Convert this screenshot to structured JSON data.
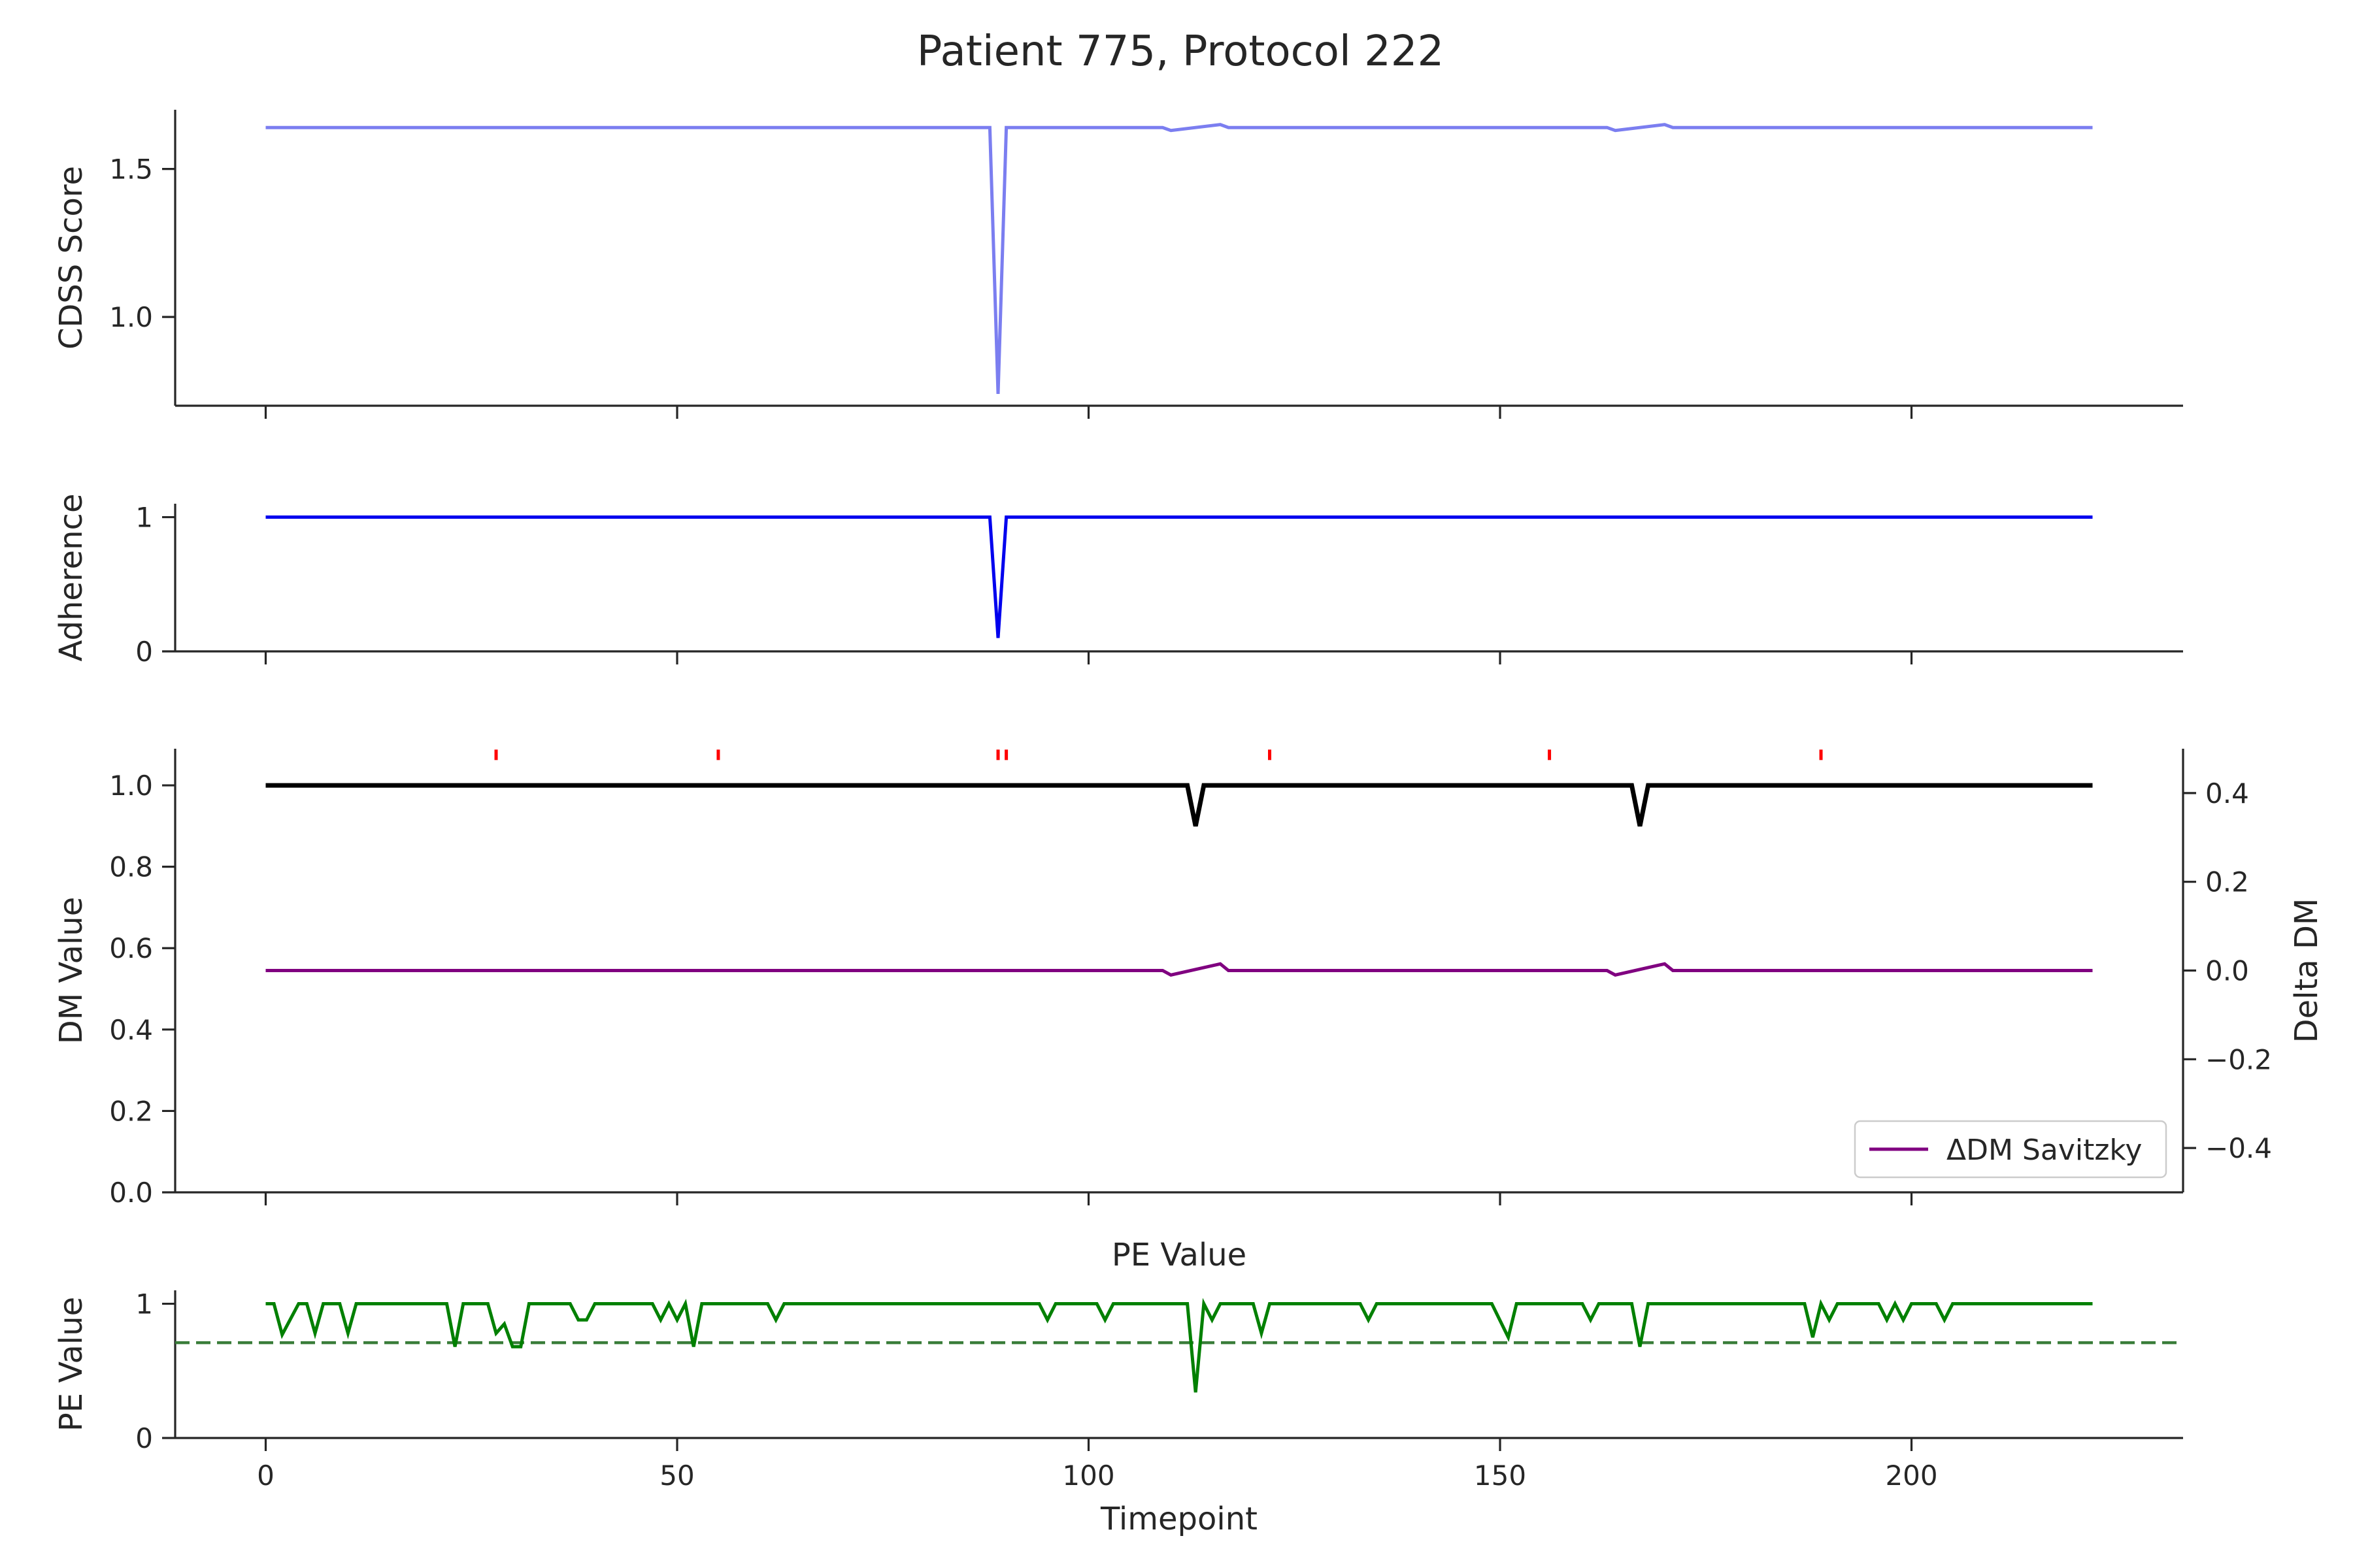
{
  "figure": {
    "title": "Patient 775, Protocol 222"
  },
  "chart_data": [
    {
      "id": "cdss",
      "type": "line",
      "ylabel": "CDSS Score",
      "ylim": [
        0.7,
        1.7
      ],
      "yticks": [
        1.0,
        1.5
      ],
      "ytick_labels": [
        "1.0",
        "1.5"
      ],
      "xlim": [
        -11,
        233
      ],
      "xticks": [
        0,
        50,
        100,
        150,
        200
      ],
      "show_xtick_labels": false,
      "grid": false,
      "series": [
        {
          "color": "#7b7ef0",
          "x": [
            0,
            88,
            89,
            90,
            109,
            110,
            116,
            117,
            163,
            164,
            170,
            171,
            222
          ],
          "y": [
            1.64,
            1.64,
            0.74,
            1.64,
            1.64,
            1.63,
            1.65,
            1.64,
            1.64,
            1.63,
            1.65,
            1.64,
            1.64
          ]
        }
      ]
    },
    {
      "id": "adherence",
      "type": "line",
      "ylabel": "Adherence",
      "ylim": [
        0,
        1.1
      ],
      "yticks": [
        0,
        1
      ],
      "ytick_labels": [
        "0",
        "1"
      ],
      "xlim": [
        -11,
        233
      ],
      "xticks": [
        0,
        50,
        100,
        150,
        200
      ],
      "show_xtick_labels": false,
      "grid": false,
      "series": [
        {
          "color": "#0000ee",
          "x": [
            0,
            88,
            89,
            90,
            222
          ],
          "y": [
            1,
            1,
            0.1,
            1,
            1
          ]
        }
      ]
    },
    {
      "id": "dm",
      "type": "line",
      "ylabel": "DM Value",
      "ylabel_right": "Delta DM",
      "ylim": [
        0,
        1.09
      ],
      "ylim_right": [
        -0.5,
        0.5
      ],
      "yticks": [
        0.0,
        0.2,
        0.4,
        0.6,
        0.8,
        1.0
      ],
      "ytick_labels": [
        "0.0",
        "0.2",
        "0.4",
        "0.6",
        "0.8",
        "1.0"
      ],
      "yticks_right": [
        -0.4,
        -0.2,
        0.0,
        0.2,
        0.4
      ],
      "ytick_labels_right": [
        "−0.4",
        "−0.2",
        "0.0",
        "0.2",
        "0.4"
      ],
      "xlim": [
        -11,
        233
      ],
      "xticks": [
        0,
        50,
        100,
        150,
        200
      ],
      "show_xtick_labels": false,
      "grid": false,
      "legend": {
        "placement": "lower-right",
        "entries": [
          {
            "label": "ΔDM Savitzky",
            "color": "#800080"
          }
        ]
      },
      "series": [
        {
          "color": "#000000",
          "axis": "left",
          "x": [
            0,
            112,
            113,
            114,
            166,
            167,
            168,
            222
          ],
          "y": [
            1.0,
            1.0,
            0.9,
            1.0,
            1.0,
            0.9,
            1.0,
            1.0
          ]
        },
        {
          "color": "#800080",
          "axis": "right",
          "x": [
            0,
            109,
            110,
            116,
            117,
            163,
            164,
            170,
            171,
            222
          ],
          "y": [
            0.0,
            0.0,
            -0.01,
            0.015,
            0.0,
            0.0,
            -0.01,
            0.015,
            0.0,
            0.0
          ]
        }
      ],
      "event_markers": {
        "color": "#ff0000",
        "x": [
          28,
          55,
          89,
          90,
          122,
          156,
          189
        ],
        "y": 1.075
      }
    },
    {
      "id": "pe",
      "type": "line",
      "subtitle": "PE Value",
      "ylabel": "PE Value",
      "xlabel": "Timepoint",
      "ylim": [
        0,
        1.1
      ],
      "yticks": [
        0,
        1
      ],
      "ytick_labels": [
        "0",
        "1"
      ],
      "xlim": [
        -11,
        233
      ],
      "xticks": [
        0,
        50,
        100,
        150,
        200
      ],
      "xtick_labels": [
        "0",
        "50",
        "100",
        "150",
        "200"
      ],
      "show_xtick_labels": true,
      "grid": false,
      "threshold": {
        "value": 0.71,
        "color": "#3a7d3a",
        "style": "dashed"
      },
      "series": [
        {
          "color": "#008000",
          "x": [
            0,
            1,
            2,
            4,
            5,
            6,
            7,
            9,
            10,
            11,
            22,
            23,
            24,
            27,
            28,
            29,
            30,
            31,
            32,
            37,
            38,
            39,
            40,
            47,
            48,
            49,
            50,
            51,
            52,
            53,
            61,
            62,
            63,
            94,
            95,
            96,
            101,
            102,
            103,
            111,
            112,
            113,
            114,
            115,
            116,
            120,
            121,
            122,
            133,
            134,
            135,
            149,
            151,
            152,
            160,
            161,
            162,
            166,
            167,
            168,
            187,
            188,
            189,
            190,
            191,
            196,
            197,
            198,
            199,
            200,
            203,
            204,
            205,
            222
          ],
          "y": [
            1,
            1,
            0.77,
            1,
            1,
            0.78,
            1,
            1,
            0.78,
            1,
            1,
            0.68,
            1,
            1,
            0.78,
            0.85,
            0.68,
            0.68,
            1,
            1,
            0.88,
            0.88,
            1,
            1,
            0.88,
            1,
            0.88,
            1,
            0.68,
            1,
            1,
            0.88,
            1,
            1,
            0.88,
            1,
            1,
            0.88,
            1,
            1,
            1,
            0.34,
            1,
            0.88,
            1,
            1,
            0.78,
            1,
            1,
            0.88,
            1,
            1,
            0.75,
            1,
            1,
            0.88,
            1,
            1,
            0.68,
            1,
            1,
            0.75,
            1,
            0.88,
            1,
            1,
            0.88,
            1,
            0.88,
            1,
            1,
            0.88,
            1,
            1
          ]
        }
      ]
    }
  ]
}
